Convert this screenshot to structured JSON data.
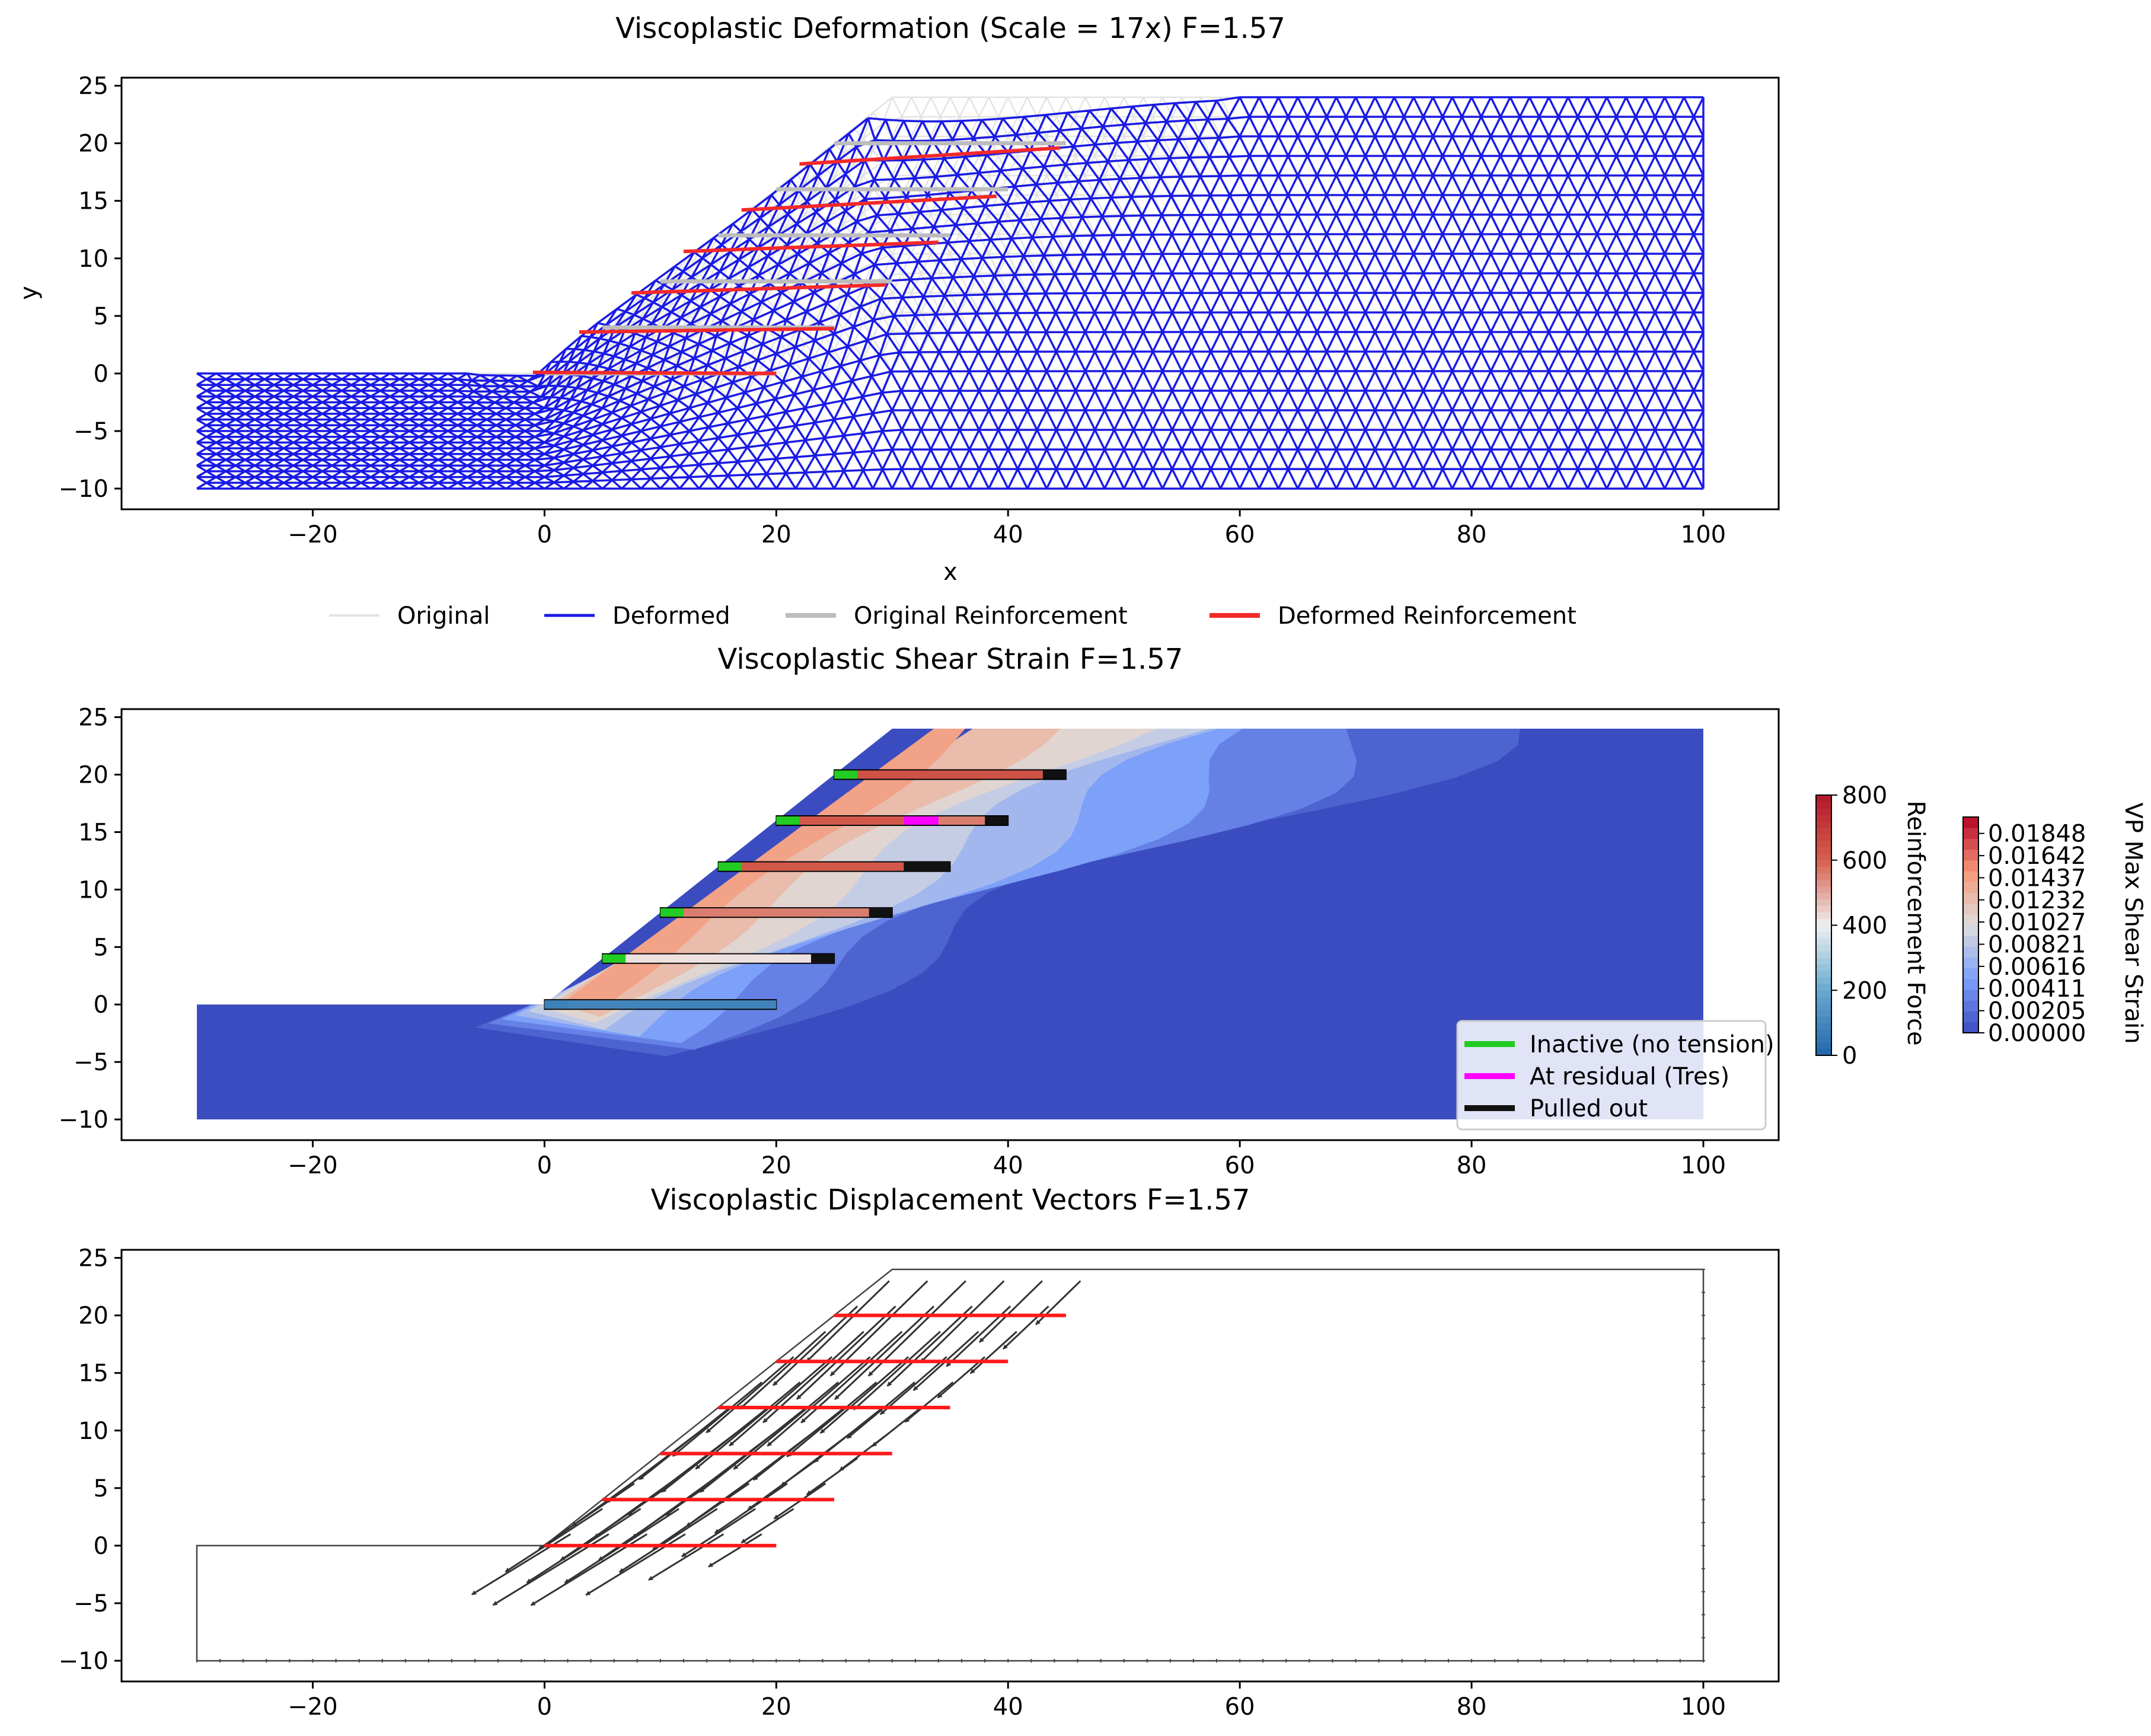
{
  "chart_data": [
    {
      "type": "mesh",
      "title": "Viscoplastic Deformation (Scale = 17x)  F=1.57",
      "xlabel": "x",
      "ylabel": "y",
      "xlim": [
        -36.5,
        106.5
      ],
      "ylim": [
        -11.8,
        25.7
      ],
      "xticks": [
        -20,
        0,
        20,
        40,
        60,
        80,
        100
      ],
      "yticks": [
        -10,
        -5,
        0,
        5,
        10,
        15,
        20,
        25
      ],
      "legend": {
        "placement": "bottom-center",
        "entries": [
          {
            "label": "Original",
            "color": "#e3e3e3"
          },
          {
            "label": "Deformed",
            "color": "#1a1ae6"
          },
          {
            "label": "Original Reinforcement",
            "color": "#bdbdbd"
          },
          {
            "label": "Deformed Reinforcement",
            "color": "#f22a2a"
          }
        ]
      },
      "mesh_outline_original": [
        [
          -30,
          -10
        ],
        [
          100,
          -10
        ],
        [
          100,
          24
        ],
        [
          30,
          24
        ],
        [
          0,
          0
        ],
        [
          -30,
          0
        ]
      ],
      "mesh_outline_deformed": [
        [
          -30,
          -10
        ],
        [
          100,
          -10
        ],
        [
          100,
          24
        ],
        [
          55,
          24
        ],
        [
          40,
          23.6
        ],
        [
          28,
          21.7
        ],
        [
          0,
          0.2
        ],
        [
          -30,
          0
        ]
      ],
      "reinforcement_original": [
        {
          "x": [
            0,
            20
          ],
          "y": [
            0,
            0
          ]
        },
        {
          "x": [
            5,
            25
          ],
          "y": [
            4,
            4
          ]
        },
        {
          "x": [
            10,
            30
          ],
          "y": [
            8,
            8
          ]
        },
        {
          "x": [
            15,
            35
          ],
          "y": [
            12,
            12
          ]
        },
        {
          "x": [
            20,
            40
          ],
          "y": [
            16,
            16
          ]
        },
        {
          "x": [
            25,
            45
          ],
          "y": [
            20,
            20
          ]
        }
      ],
      "reinforcement_deformed": [
        {
          "x": [
            -1,
            20
          ],
          "y": [
            0.1,
            0
          ]
        },
        {
          "x": [
            3,
            25
          ],
          "y": [
            3.6,
            3.9
          ]
        },
        {
          "x": [
            7.5,
            29.5
          ],
          "y": [
            7.0,
            7.7
          ]
        },
        {
          "x": [
            12,
            34
          ],
          "y": [
            10.6,
            11.4
          ]
        },
        {
          "x": [
            17,
            39
          ],
          "y": [
            14.2,
            15.4
          ]
        },
        {
          "x": [
            22,
            44.5
          ],
          "y": [
            18.2,
            19.6
          ]
        }
      ]
    },
    {
      "type": "contour",
      "title": "Viscoplastic Shear Strain  F=1.57",
      "xlim": [
        -36.5,
        106.5
      ],
      "ylim": [
        -11.8,
        25.7
      ],
      "xticks": [
        -20,
        0,
        20,
        40,
        60,
        80,
        100
      ],
      "yticks": [
        -10,
        -5,
        0,
        5,
        10,
        15,
        20,
        25
      ],
      "strain_colorbar": {
        "label": "VP Max Shear Strain",
        "ticks": [
          "0.00000",
          "0.00205",
          "0.00411",
          "0.00616",
          "0.00821",
          "0.01027",
          "0.01232",
          "0.01437",
          "0.01642",
          "0.01848"
        ],
        "range": [
          0,
          0.02
        ]
      },
      "force_colorbar": {
        "label": "Reinforcement Force",
        "ticks": [
          0,
          200,
          400,
          600,
          800
        ],
        "range": [
          0,
          800
        ]
      },
      "legend": {
        "placement": "lower-right",
        "entries": [
          {
            "label": "Inactive (no tension)",
            "color": "#22cc22"
          },
          {
            "label": "At residual (Tres)",
            "color": "#ff00ff"
          },
          {
            "label": "Pulled out",
            "color": "#111111"
          }
        ]
      },
      "reinforcements": [
        {
          "y": 0,
          "segments": [
            {
              "x": [
                0,
                2
              ],
              "state": "force",
              "f": 80
            },
            {
              "x": [
                2,
                20
              ],
              "state": "force",
              "f": 90
            }
          ]
        },
        {
          "y": 4,
          "segments": [
            {
              "x": [
                5,
                7
              ],
              "state": "inactive"
            },
            {
              "x": [
                7,
                23
              ],
              "state": "force",
              "f": 420
            },
            {
              "x": [
                23,
                25
              ],
              "state": "pulled"
            }
          ]
        },
        {
          "y": 8,
          "segments": [
            {
              "x": [
                10,
                12
              ],
              "state": "inactive"
            },
            {
              "x": [
                12,
                28
              ],
              "state": "force",
              "f": 560
            },
            {
              "x": [
                28,
                30
              ],
              "state": "pulled"
            }
          ]
        },
        {
          "y": 12,
          "segments": [
            {
              "x": [
                15,
                17
              ],
              "state": "inactive"
            },
            {
              "x": [
                17,
                31
              ],
              "state": "force",
              "f": 620
            },
            {
              "x": [
                31,
                35
              ],
              "state": "pulled"
            }
          ]
        },
        {
          "y": 16,
          "segments": [
            {
              "x": [
                20,
                22
              ],
              "state": "inactive"
            },
            {
              "x": [
                22,
                31
              ],
              "state": "force",
              "f": 620
            },
            {
              "x": [
                31,
                34
              ],
              "state": "residual"
            },
            {
              "x": [
                34,
                38
              ],
              "state": "force",
              "f": 560
            },
            {
              "x": [
                38,
                40
              ],
              "state": "pulled"
            }
          ]
        },
        {
          "y": 20,
          "segments": [
            {
              "x": [
                25,
                27
              ],
              "state": "inactive"
            },
            {
              "x": [
                27,
                43
              ],
              "state": "force",
              "f": 640
            },
            {
              "x": [
                43,
                45
              ],
              "state": "pulled"
            }
          ]
        }
      ]
    },
    {
      "type": "quiver",
      "title": "Viscoplastic Displacement Vectors  F=1.57",
      "xlim": [
        -36.5,
        106.5
      ],
      "ylim": [
        -11.8,
        25.7
      ],
      "xticks": [
        -20,
        0,
        20,
        40,
        60,
        80,
        100
      ],
      "yticks": [
        -10,
        -5,
        0,
        5,
        10,
        15,
        20,
        25
      ],
      "reinforcements": [
        {
          "x": [
            0,
            20
          ],
          "y": [
            0,
            0
          ]
        },
        {
          "x": [
            5,
            25
          ],
          "y": [
            4,
            4
          ]
        },
        {
          "x": [
            10,
            30
          ],
          "y": [
            8,
            8
          ]
        },
        {
          "x": [
            15,
            35
          ],
          "y": [
            12,
            12
          ]
        },
        {
          "x": [
            20,
            40
          ],
          "y": [
            16,
            16
          ]
        },
        {
          "x": [
            25,
            45
          ],
          "y": [
            20,
            20
          ]
        }
      ]
    }
  ]
}
